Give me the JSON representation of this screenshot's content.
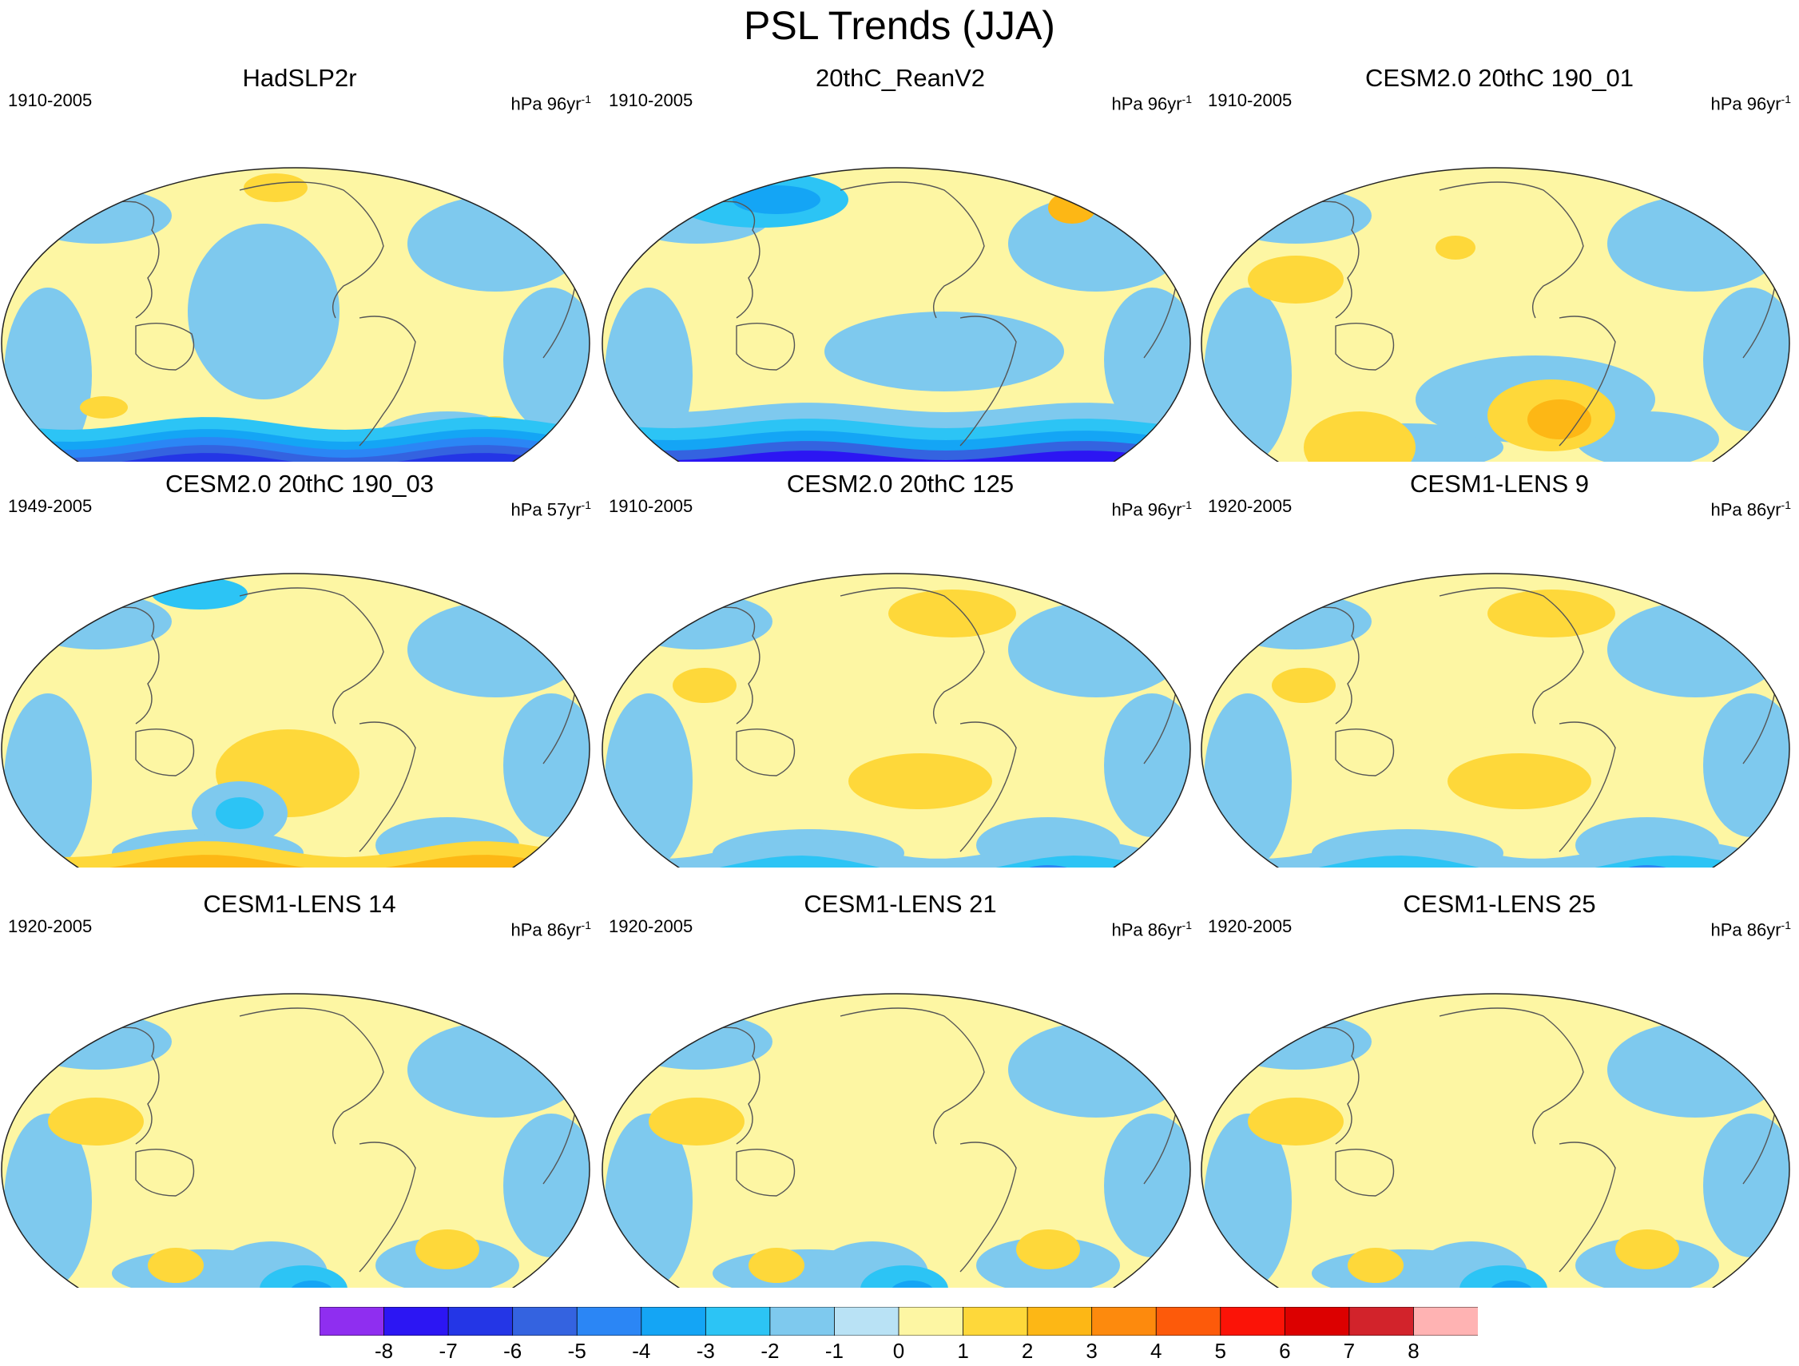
{
  "title": "PSL Trends (JJA)",
  "panels": [
    {
      "title": "HadSLP2r",
      "period": "1910-2005",
      "units": "hPa 96yr",
      "exp": "-1",
      "pattern": "sh_neg_strong"
    },
    {
      "title": "20thC_ReanV2",
      "period": "1910-2005",
      "units": "hPa 96yr",
      "exp": "-1",
      "pattern": "sh_neg_band"
    },
    {
      "title": "CESM2.0 20thC 190_01",
      "period": "1910-2005",
      "units": "hPa 96yr",
      "exp": "-1",
      "pattern": "sh_pos_weak"
    },
    {
      "title": "CESM2.0 20thC 190_03",
      "period": "1949-2005",
      "units": "hPa 57yr",
      "exp": "-1",
      "pattern": "sh_pos_strong"
    },
    {
      "title": "CESM2.0 20thC 125",
      "period": "1910-2005",
      "units": "hPa 96yr",
      "exp": "-1",
      "pattern": "sh_neg_mod"
    },
    {
      "title": "CESM1-LENS 9",
      "period": "1920-2005",
      "units": "hPa 86yr",
      "exp": "-1",
      "pattern": "sh_neg_mod"
    },
    {
      "title": "CESM1-LENS 14",
      "period": "1920-2005",
      "units": "hPa 86yr",
      "exp": "-1",
      "pattern": "mixed"
    },
    {
      "title": "CESM1-LENS 21",
      "period": "1920-2005",
      "units": "hPa 86yr",
      "exp": "-1",
      "pattern": "mixed"
    },
    {
      "title": "CESM1-LENS 25",
      "period": "1920-2005",
      "units": "hPa 86yr",
      "exp": "-1",
      "pattern": "mixed"
    }
  ],
  "chart_data": {
    "type": "heatmap",
    "title": "PSL Trends (JJA)",
    "projection": "Robinson, Pacific-centered global map",
    "colorbar": {
      "levels": [
        "-8",
        "-7",
        "-6",
        "-5",
        "-4",
        "-3",
        "-2",
        "-1",
        "0",
        "1",
        "2",
        "3",
        "4",
        "5",
        "6",
        "7",
        "8"
      ],
      "colors": [
        "#8f2ef0",
        "#2c16f3",
        "#2436e6",
        "#3463e0",
        "#2b86f5",
        "#14a5f5",
        "#2cc4f5",
        "#7ec9ee",
        "#b9e2f5",
        "#fdf6a3",
        "#fed83a",
        "#fdb715",
        "#fd8a0d",
        "#fd5a0a",
        "#fb1307",
        "#dc0000",
        "#d2232b",
        "#ffb3b3"
      ]
    }
  }
}
